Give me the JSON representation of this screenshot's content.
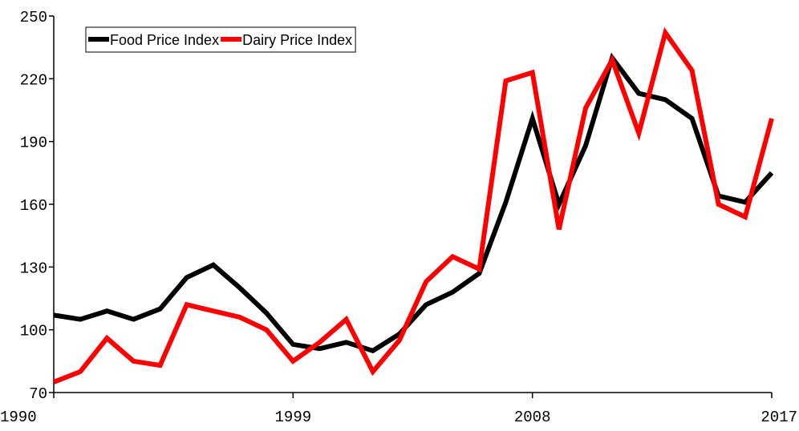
{
  "chart_data": {
    "type": "line",
    "x": [
      1990,
      1991,
      1992,
      1993,
      1994,
      1995,
      1996,
      1997,
      1998,
      1999,
      2000,
      2001,
      2002,
      2003,
      2004,
      2005,
      2006,
      2007,
      2008,
      2009,
      2010,
      2011,
      2012,
      2013,
      2014,
      2015,
      2016,
      2017
    ],
    "series": [
      {
        "name": "Food Price Index",
        "color": "#000000",
        "values": [
          107,
          105,
          109,
          105,
          110,
          125,
          131,
          120,
          108,
          93,
          91,
          94,
          90,
          98,
          112,
          118,
          127,
          161,
          201,
          160,
          188,
          230,
          213,
          210,
          201,
          164,
          161,
          175
        ]
      },
      {
        "name": "Dairy Price Index",
        "color": "#ff0000",
        "values": [
          75,
          80,
          96,
          85,
          83,
          112,
          109,
          106,
          100,
          85,
          94,
          105,
          80,
          95,
          123,
          135,
          129,
          219,
          223,
          148,
          206,
          229,
          194,
          242,
          224,
          160,
          154,
          201
        ]
      }
    ],
    "xlim": [
      1990,
      2017
    ],
    "xticks": [
      1990,
      1999,
      2008,
      2017
    ],
    "ylim": [
      70,
      250
    ],
    "yticks": [
      70,
      100,
      130,
      160,
      190,
      220,
      250
    ],
    "grid": false,
    "legend": "upper left"
  }
}
